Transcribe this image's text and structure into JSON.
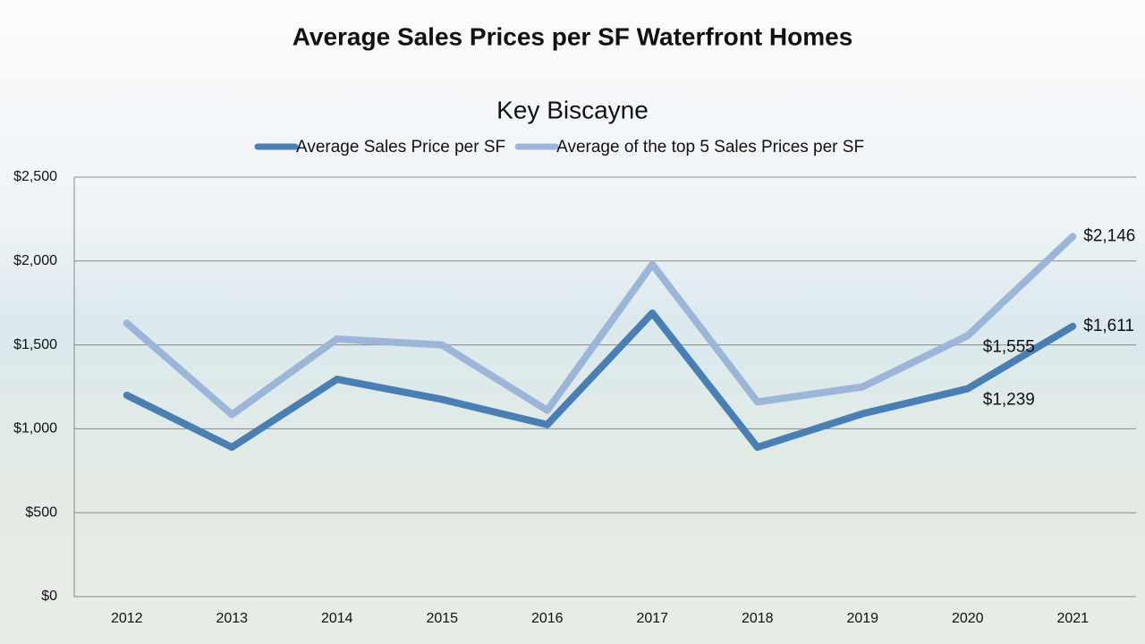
{
  "chart_data": {
    "type": "line",
    "title": "Average Sales Prices per SF  Waterfront Homes",
    "subtitle": "Key Biscayne",
    "categories": [
      "2012",
      "2013",
      "2014",
      "2015",
      "2016",
      "2017",
      "2018",
      "2019",
      "2020",
      "2021"
    ],
    "series": [
      {
        "name": "Average Sales Price per SF",
        "color": "#4a7fb4",
        "values": [
          1200,
          890,
          1295,
          1175,
          1025,
          1690,
          890,
          1090,
          1239,
          1611
        ],
        "value_labels": [
          null,
          null,
          null,
          null,
          null,
          null,
          null,
          null,
          "$1,239",
          "$1,611"
        ]
      },
      {
        "name": "Average of the top 5 Sales Prices per SF",
        "color": "#9bb6d8",
        "values": [
          1630,
          1085,
          1535,
          1500,
          1110,
          1980,
          1160,
          1250,
          1555,
          2146
        ],
        "value_labels": [
          null,
          null,
          null,
          null,
          null,
          null,
          null,
          null,
          "$1,555",
          "$2,146"
        ]
      }
    ],
    "ylim": [
      0,
      2500
    ],
    "yticks": [
      {
        "value": 0,
        "label": "$0"
      },
      {
        "value": 500,
        "label": "$500"
      },
      {
        "value": 1000,
        "label": "$1,000"
      },
      {
        "value": 1500,
        "label": "$1,500"
      },
      {
        "value": 2000,
        "label": "$2,000"
      },
      {
        "value": 2500,
        "label": "$2,500"
      }
    ],
    "grid": true
  }
}
